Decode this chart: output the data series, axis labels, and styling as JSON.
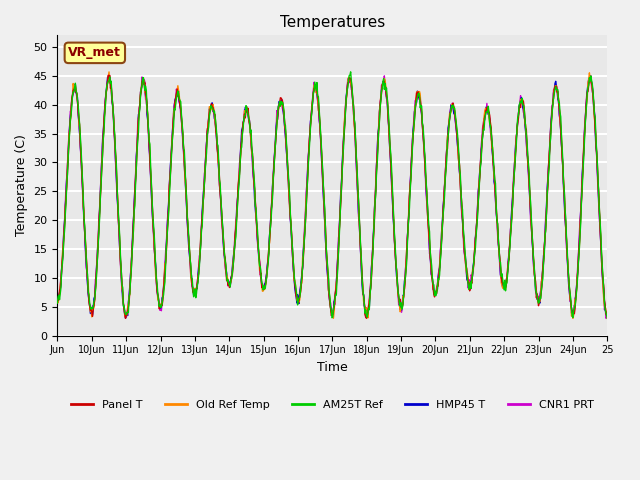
{
  "title": "Temperatures",
  "xlabel": "Time",
  "ylabel": "Temperature (C)",
  "ylim": [
    0,
    52
  ],
  "yticks": [
    0,
    5,
    10,
    15,
    20,
    25,
    30,
    35,
    40,
    45,
    50
  ],
  "background_color": "#e8e8e8",
  "grid_color": "#ffffff",
  "annotation_text": "VR_met",
  "annotation_box_color": "#ffff99",
  "annotation_box_edge": "#8B4513",
  "series_colors": {
    "Panel T": "#cc0000",
    "Old Ref Temp": "#ff8800",
    "AM25T Ref": "#00cc00",
    "HMP45 T": "#0000cc",
    "CNR1 PRT": "#cc00cc"
  },
  "xtick_labels": [
    "Jun",
    "10Jun",
    "11Jun",
    "12Jun",
    "13Jun",
    "14Jun",
    "15Jun",
    "16Jun",
    "17Jun",
    "18Jun",
    "19Jun",
    "20Jun",
    "21Jun",
    "22Jun",
    "23Jun",
    "24Jun",
    "25"
  ],
  "num_days": 16,
  "samples_per_day": 48,
  "legend_entries": [
    "Panel T",
    "Old Ref Temp",
    "AM25T Ref",
    "HMP45 T",
    "CNR1 PRT"
  ]
}
